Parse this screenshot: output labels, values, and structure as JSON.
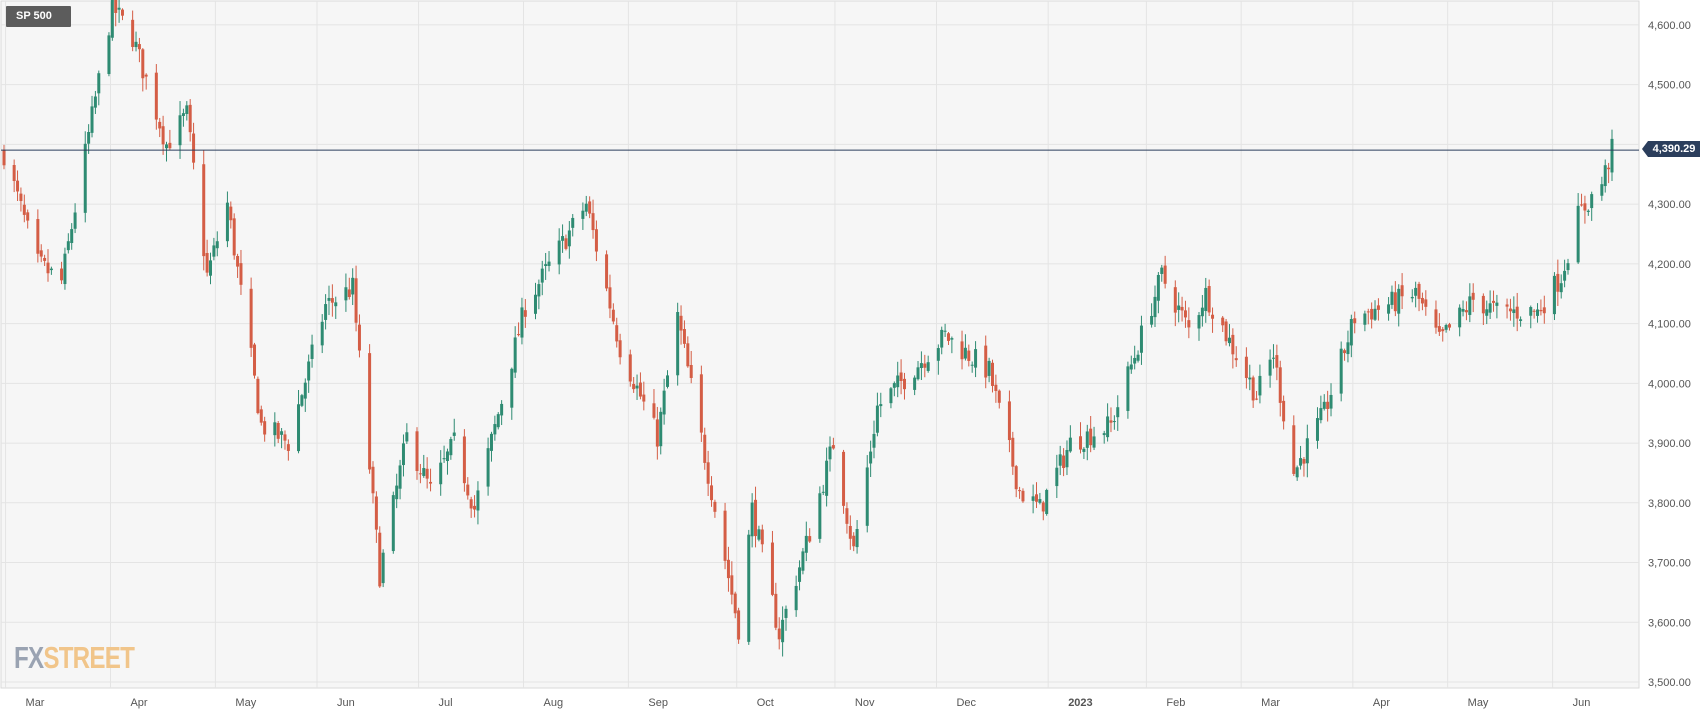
{
  "badge": {
    "label": "SP 500"
  },
  "logo": {
    "part1": "FX",
    "part2": "STREET"
  },
  "current_price_label": "4,390.29",
  "colors": {
    "up": "#2e8b72",
    "down": "#d45d45",
    "grid": "#e4e4e4",
    "plot_bg": "#f6f6f6",
    "price_line": "#2b3e5c"
  },
  "chart_data": {
    "type": "candlestick",
    "title": "SP 500",
    "ylim": [
      3490,
      4640
    ],
    "yticks": [
      3500,
      3600,
      3700,
      3800,
      3900,
      4000,
      4100,
      4200,
      4300,
      4400,
      4500,
      4600
    ],
    "ytick_labels": [
      "3,500.00",
      "3,600.00",
      "3,700.00",
      "3,800.00",
      "3,900.00",
      "4,000.00",
      "4,100.00",
      "4,200.00",
      "4,300.00",
      "4,400.00",
      "4,500.00",
      "4,600.00"
    ],
    "xtick_labels": [
      "Mar",
      "Apr",
      "May",
      "Jun",
      "Jul",
      "Aug",
      "Sep",
      "Oct",
      "Nov",
      "Dec",
      "2023",
      "Feb",
      "Mar",
      "Apr",
      "May",
      "Jun"
    ],
    "xtick_bold": [
      "2023"
    ],
    "current_price": 4390.29,
    "grid": true,
    "waypoints": [
      [
        "2022-02-25",
        4385
      ],
      [
        "2022-03-07",
        4200
      ],
      [
        "2022-03-14",
        4170
      ],
      [
        "2022-03-29",
        4630
      ],
      [
        "2022-04-04",
        4580
      ],
      [
        "2022-04-14",
        4400
      ],
      [
        "2022-04-20",
        4450
      ],
      [
        "2022-04-26",
        4180
      ],
      [
        "2022-05-02",
        4300
      ],
      [
        "2022-05-12",
        3930
      ],
      [
        "2022-05-20",
        3900
      ],
      [
        "2022-05-31",
        4130
      ],
      [
        "2022-06-08",
        4160
      ],
      [
        "2022-06-16",
        3680
      ],
      [
        "2022-06-24",
        3910
      ],
      [
        "2022-07-01",
        3820
      ],
      [
        "2022-07-08",
        3900
      ],
      [
        "2022-07-14",
        3790
      ],
      [
        "2022-07-29",
        4130
      ],
      [
        "2022-08-16",
        4300
      ],
      [
        "2022-08-26",
        4060
      ],
      [
        "2022-09-06",
        3910
      ],
      [
        "2022-09-12",
        4110
      ],
      [
        "2022-09-30",
        3590
      ],
      [
        "2022-10-04",
        3790
      ],
      [
        "2022-10-12",
        3580
      ],
      [
        "2022-10-21",
        3750
      ],
      [
        "2022-10-28",
        3900
      ],
      [
        "2022-11-03",
        3720
      ],
      [
        "2022-11-10",
        3960
      ],
      [
        "2022-11-30",
        4080
      ],
      [
        "2022-12-13",
        4020
      ],
      [
        "2022-12-22",
        3820
      ],
      [
        "2022-12-28",
        3790
      ],
      [
        "2023-01-06",
        3900
      ],
      [
        "2023-01-18",
        3930
      ],
      [
        "2023-02-02",
        4180
      ],
      [
        "2023-02-10",
        4090
      ],
      [
        "2023-02-15",
        4150
      ],
      [
        "2023-03-02",
        3980
      ],
      [
        "2023-03-07",
        4050
      ],
      [
        "2023-03-13",
        3850
      ],
      [
        "2023-03-22",
        3950
      ],
      [
        "2023-03-31",
        4110
      ],
      [
        "2023-04-18",
        4150
      ],
      [
        "2023-04-25",
        4070
      ],
      [
        "2023-05-05",
        4140
      ],
      [
        "2023-05-12",
        4120
      ],
      [
        "2023-05-24",
        4120
      ],
      [
        "2023-05-31",
        4180
      ],
      [
        "2023-06-05",
        4280
      ],
      [
        "2023-06-12",
        4335
      ],
      [
        "2023-06-15",
        4390
      ]
    ]
  }
}
